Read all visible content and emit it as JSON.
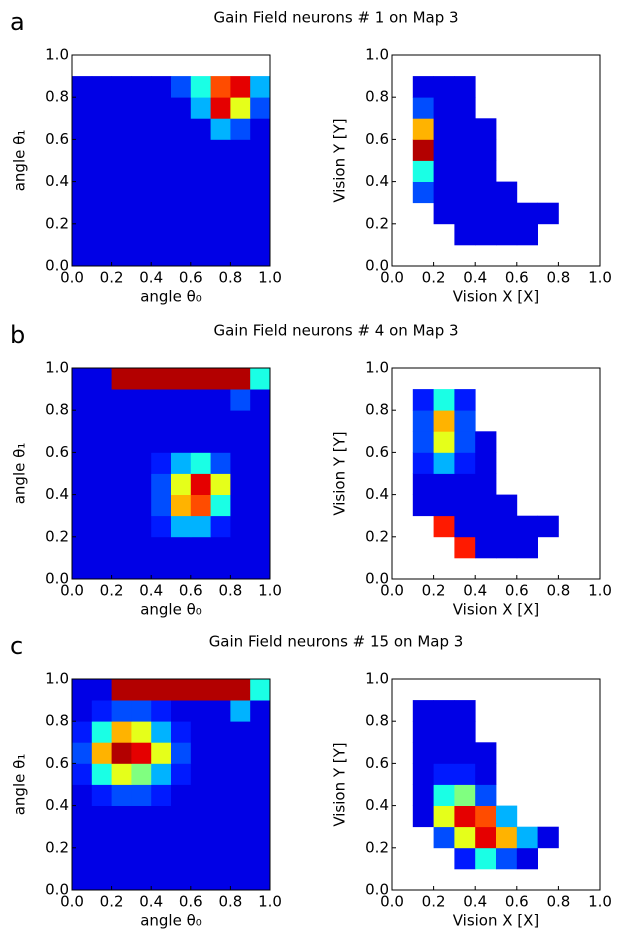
{
  "chart_data": [
    {
      "type": "heatmap",
      "panel_label": "a",
      "title": "Gain Field neurons # 1 on Map 3",
      "xlabel": "angle θ₀",
      "ylabel": "angle θ₁",
      "xlim": [
        0,
        1
      ],
      "ylim": [
        0,
        1
      ],
      "xticks": [
        {
          "value": 0,
          "label": "0.0"
        },
        {
          "value": 0.2,
          "label": "0.2"
        },
        {
          "value": 0.4,
          "label": "0.4"
        },
        {
          "value": 0.6,
          "label": "0.6"
        },
        {
          "value": 0.8,
          "label": "0.8"
        },
        {
          "value": 1,
          "label": "1.0"
        }
      ],
      "yticks": [
        {
          "value": 0,
          "label": "0.0"
        },
        {
          "value": 0.2,
          "label": "0.2"
        },
        {
          "value": 0.4,
          "label": "0.4"
        },
        {
          "value": 0.6,
          "label": "0.6"
        },
        {
          "value": 0.8,
          "label": "0.8"
        },
        {
          "value": 1,
          "label": "1.0"
        }
      ],
      "z": [
        [
          0.1,
          0.1,
          0.1,
          0.1,
          0.1,
          0.1,
          0.1,
          0.1,
          0.1,
          0.1
        ],
        [
          0.1,
          0.1,
          0.1,
          0.1,
          0.1,
          0.1,
          0.1,
          0.1,
          0.1,
          0.1
        ],
        [
          0.1,
          0.1,
          0.1,
          0.1,
          0.1,
          0.1,
          0.1,
          0.1,
          0.1,
          0.1
        ],
        [
          0.1,
          0.1,
          0.1,
          0.1,
          0.1,
          0.1,
          0.1,
          0.1,
          0.1,
          0.1
        ],
        [
          0.1,
          0.1,
          0.1,
          0.1,
          0.1,
          0.1,
          0.1,
          0.1,
          0.1,
          0.1
        ],
        [
          0.1,
          0.1,
          0.1,
          0.1,
          0.1,
          0.1,
          0.1,
          0.1,
          0.1,
          0.1
        ],
        [
          0.1,
          0.1,
          0.1,
          0.1,
          0.1,
          0.1,
          0.1,
          0.3,
          0.2,
          0.1
        ],
        [
          0.1,
          0.1,
          0.1,
          0.1,
          0.1,
          0.1,
          0.3,
          0.9,
          0.6,
          0.2
        ],
        [
          0.1,
          0.1,
          0.1,
          0.1,
          0.1,
          0.2,
          0.4,
          0.8,
          0.9,
          0.3
        ],
        [
          null,
          null,
          null,
          null,
          null,
          null,
          null,
          null,
          null,
          null
        ]
      ]
    },
    {
      "type": "heatmap",
      "xlabel": "Vision X [X]",
      "ylabel": "Vision Y [Y]",
      "xlim": [
        0,
        1
      ],
      "ylim": [
        0,
        1
      ],
      "xticks": [
        {
          "value": 0,
          "label": "0.0"
        },
        {
          "value": 0.2,
          "label": "0.2"
        },
        {
          "value": 0.4,
          "label": "0.4"
        },
        {
          "value": 0.6,
          "label": "0.6"
        },
        {
          "value": 0.8,
          "label": "0.8"
        },
        {
          "value": 1,
          "label": "1.0"
        }
      ],
      "yticks": [
        {
          "value": 0,
          "label": "0.0"
        },
        {
          "value": 0.2,
          "label": "0.2"
        },
        {
          "value": 0.4,
          "label": "0.4"
        },
        {
          "value": 0.6,
          "label": "0.6"
        },
        {
          "value": 0.8,
          "label": "0.8"
        },
        {
          "value": 1,
          "label": "1.0"
        }
      ],
      "z": [
        [
          null,
          null,
          null,
          null,
          null,
          null,
          null,
          null,
          null,
          null
        ],
        [
          null,
          null,
          null,
          0.1,
          0.1,
          0.1,
          0.1,
          null,
          null,
          null
        ],
        [
          null,
          null,
          0.1,
          0.1,
          0.1,
          0.1,
          0.1,
          0.1,
          null,
          null
        ],
        [
          null,
          0.2,
          0.1,
          0.1,
          0.1,
          0.1,
          null,
          null,
          null,
          null
        ],
        [
          null,
          0.4,
          0.1,
          0.1,
          0.1,
          null,
          null,
          null,
          null,
          null
        ],
        [
          null,
          0.95,
          0.1,
          0.1,
          0.1,
          null,
          null,
          null,
          null,
          null
        ],
        [
          null,
          0.7,
          0.1,
          0.1,
          0.1,
          null,
          null,
          null,
          null,
          null
        ],
        [
          null,
          0.2,
          0.1,
          0.1,
          null,
          null,
          null,
          null,
          null,
          null
        ],
        [
          null,
          0.1,
          0.1,
          0.1,
          null,
          null,
          null,
          null,
          null,
          null
        ],
        [
          null,
          null,
          null,
          null,
          null,
          null,
          null,
          null,
          null,
          null
        ]
      ]
    },
    {
      "type": "heatmap",
      "panel_label": "b",
      "title": "Gain Field neurons # 4 on Map 3",
      "xlabel": "angle θ₀",
      "ylabel": "angle θ₁",
      "xlim": [
        0,
        1
      ],
      "ylim": [
        0,
        1
      ],
      "xticks": [
        {
          "value": 0,
          "label": "0.0"
        },
        {
          "value": 0.2,
          "label": "0.2"
        },
        {
          "value": 0.4,
          "label": "0.4"
        },
        {
          "value": 0.6,
          "label": "0.6"
        },
        {
          "value": 0.8,
          "label": "0.8"
        },
        {
          "value": 1,
          "label": "1.0"
        }
      ],
      "yticks": [
        {
          "value": 0,
          "label": "0.0"
        },
        {
          "value": 0.2,
          "label": "0.2"
        },
        {
          "value": 0.4,
          "label": "0.4"
        },
        {
          "value": 0.6,
          "label": "0.6"
        },
        {
          "value": 0.8,
          "label": "0.8"
        },
        {
          "value": 1,
          "label": "1.0"
        }
      ],
      "z": [
        [
          0.1,
          0.1,
          0.1,
          0.1,
          0.1,
          0.1,
          0.1,
          0.1,
          0.1,
          0.1
        ],
        [
          0.1,
          0.1,
          0.1,
          0.1,
          0.1,
          0.1,
          0.1,
          0.1,
          0.1,
          0.1
        ],
        [
          0.1,
          0.1,
          0.1,
          0.1,
          0.15,
          0.3,
          0.3,
          0.15,
          0.1,
          0.1
        ],
        [
          0.1,
          0.1,
          0.1,
          0.1,
          0.2,
          0.7,
          0.8,
          0.4,
          0.1,
          0.1
        ],
        [
          0.1,
          0.1,
          0.1,
          0.1,
          0.2,
          0.6,
          0.9,
          0.6,
          0.1,
          0.1
        ],
        [
          0.1,
          0.1,
          0.1,
          0.1,
          0.15,
          0.3,
          0.4,
          0.2,
          0.1,
          0.1
        ],
        [
          0.1,
          0.1,
          0.1,
          0.1,
          0.1,
          0.1,
          0.1,
          0.1,
          0.1,
          0.1
        ],
        [
          0.1,
          0.1,
          0.1,
          0.1,
          0.1,
          0.1,
          0.1,
          0.1,
          0.1,
          0.1
        ],
        [
          0.1,
          0.1,
          0.1,
          0.1,
          0.1,
          0.1,
          0.1,
          0.1,
          0.2,
          0.1
        ],
        [
          0.1,
          0.1,
          0.95,
          0.95,
          0.95,
          0.95,
          0.95,
          0.95,
          0.95,
          0.4
        ]
      ]
    },
    {
      "type": "heatmap",
      "xlabel": "Vision X [X]",
      "ylabel": "Vision Y [Y]",
      "xlim": [
        0,
        1
      ],
      "ylim": [
        0,
        1
      ],
      "xticks": [
        {
          "value": 0,
          "label": "0.0"
        },
        {
          "value": 0.2,
          "label": "0.2"
        },
        {
          "value": 0.4,
          "label": "0.4"
        },
        {
          "value": 0.6,
          "label": "0.6"
        },
        {
          "value": 0.8,
          "label": "0.8"
        },
        {
          "value": 1,
          "label": "1.0"
        }
      ],
      "yticks": [
        {
          "value": 0,
          "label": "0.0"
        },
        {
          "value": 0.2,
          "label": "0.2"
        },
        {
          "value": 0.4,
          "label": "0.4"
        },
        {
          "value": 0.6,
          "label": "0.6"
        },
        {
          "value": 0.8,
          "label": "0.8"
        },
        {
          "value": 1,
          "label": "1.0"
        }
      ],
      "z": [
        [
          null,
          null,
          null,
          null,
          null,
          null,
          null,
          null,
          null,
          null
        ],
        [
          null,
          null,
          null,
          0.85,
          0.1,
          0.1,
          0.1,
          null,
          null,
          null
        ],
        [
          null,
          null,
          0.85,
          0.1,
          0.1,
          0.1,
          0.1,
          0.1,
          null,
          null
        ],
        [
          null,
          0.1,
          0.1,
          0.1,
          0.1,
          0.1,
          null,
          null,
          null,
          null
        ],
        [
          null,
          0.1,
          0.1,
          0.1,
          0.1,
          null,
          null,
          null,
          null,
          null
        ],
        [
          null,
          0.15,
          0.3,
          0.15,
          0.1,
          null,
          null,
          null,
          null,
          null
        ],
        [
          null,
          0.2,
          0.6,
          0.2,
          0.1,
          null,
          null,
          null,
          null,
          null
        ],
        [
          null,
          0.2,
          0.7,
          0.2,
          null,
          null,
          null,
          null,
          null,
          null
        ],
        [
          null,
          0.15,
          0.4,
          0.15,
          null,
          null,
          null,
          null,
          null,
          null
        ],
        [
          null,
          null,
          null,
          null,
          null,
          null,
          null,
          null,
          null,
          null
        ]
      ]
    },
    {
      "type": "heatmap",
      "panel_label": "c",
      "title": "Gain Field neurons # 15 on Map 3",
      "xlabel": "angle θ₀",
      "ylabel": "angle θ₁",
      "xlim": [
        0,
        1
      ],
      "ylim": [
        0,
        1
      ],
      "xticks": [
        {
          "value": 0,
          "label": "0.0"
        },
        {
          "value": 0.2,
          "label": "0.2"
        },
        {
          "value": 0.4,
          "label": "0.4"
        },
        {
          "value": 0.6,
          "label": "0.6"
        },
        {
          "value": 0.8,
          "label": "0.8"
        },
        {
          "value": 1,
          "label": "1.0"
        }
      ],
      "yticks": [
        {
          "value": 0,
          "label": "0.0"
        },
        {
          "value": 0.2,
          "label": "0.2"
        },
        {
          "value": 0.4,
          "label": "0.4"
        },
        {
          "value": 0.6,
          "label": "0.6"
        },
        {
          "value": 0.8,
          "label": "0.8"
        },
        {
          "value": 1,
          "label": "1.0"
        }
      ],
      "z": [
        [
          0.1,
          0.1,
          0.1,
          0.1,
          0.1,
          0.1,
          0.1,
          0.1,
          0.1,
          0.1
        ],
        [
          0.1,
          0.1,
          0.1,
          0.1,
          0.1,
          0.1,
          0.1,
          0.1,
          0.1,
          0.1
        ],
        [
          0.1,
          0.1,
          0.1,
          0.1,
          0.1,
          0.1,
          0.1,
          0.1,
          0.1,
          0.1
        ],
        [
          0.1,
          0.1,
          0.1,
          0.1,
          0.1,
          0.1,
          0.1,
          0.1,
          0.1,
          0.1
        ],
        [
          0.1,
          0.15,
          0.2,
          0.2,
          0.15,
          0.1,
          0.1,
          0.1,
          0.1,
          0.1
        ],
        [
          0.15,
          0.4,
          0.6,
          0.5,
          0.3,
          0.15,
          0.1,
          0.1,
          0.1,
          0.1
        ],
        [
          0.2,
          0.7,
          0.95,
          0.9,
          0.6,
          0.2,
          0.1,
          0.1,
          0.1,
          0.1
        ],
        [
          0.15,
          0.4,
          0.7,
          0.6,
          0.3,
          0.15,
          0.1,
          0.1,
          0.1,
          0.1
        ],
        [
          0.1,
          0.15,
          0.2,
          0.2,
          0.15,
          0.1,
          0.1,
          0.1,
          0.3,
          0.1
        ],
        [
          0.1,
          0.1,
          0.95,
          0.95,
          0.95,
          0.95,
          0.95,
          0.95,
          0.95,
          0.4
        ]
      ]
    },
    {
      "type": "heatmap",
      "xlabel": "Vision X [X]",
      "ylabel": "Vision Y [Y]",
      "xlim": [
        0,
        1
      ],
      "ylim": [
        0,
        1
      ],
      "xticks": [
        {
          "value": 0,
          "label": "0.0"
        },
        {
          "value": 0.2,
          "label": "0.2"
        },
        {
          "value": 0.4,
          "label": "0.4"
        },
        {
          "value": 0.6,
          "label": "0.6"
        },
        {
          "value": 0.8,
          "label": "0.8"
        },
        {
          "value": 1,
          "label": "1.0"
        }
      ],
      "yticks": [
        {
          "value": 0,
          "label": "0.0"
        },
        {
          "value": 0.2,
          "label": "0.2"
        },
        {
          "value": 0.4,
          "label": "0.4"
        },
        {
          "value": 0.6,
          "label": "0.6"
        },
        {
          "value": 0.8,
          "label": "0.8"
        },
        {
          "value": 1,
          "label": "1.0"
        }
      ],
      "z": [
        [
          null,
          null,
          null,
          null,
          null,
          null,
          null,
          null,
          null,
          null
        ],
        [
          null,
          null,
          null,
          0.15,
          0.4,
          0.2,
          0.1,
          null,
          null,
          null
        ],
        [
          null,
          null,
          0.2,
          0.6,
          0.9,
          0.7,
          0.3,
          0.1,
          null,
          null
        ],
        [
          null,
          0.1,
          0.6,
          0.9,
          0.8,
          0.3,
          null,
          null,
          null,
          null
        ],
        [
          null,
          0.1,
          0.4,
          0.5,
          0.2,
          null,
          null,
          null,
          null,
          null
        ],
        [
          null,
          0.1,
          0.15,
          0.15,
          0.1,
          null,
          null,
          null,
          null,
          null
        ],
        [
          null,
          0.1,
          0.1,
          0.1,
          0.1,
          null,
          null,
          null,
          null,
          null
        ],
        [
          null,
          0.1,
          0.1,
          0.1,
          null,
          null,
          null,
          null,
          null,
          null
        ],
        [
          null,
          0.1,
          0.1,
          0.1,
          null,
          null,
          null,
          null,
          null,
          null
        ],
        [
          null,
          null,
          null,
          null,
          null,
          null,
          null,
          null,
          null,
          null
        ]
      ]
    }
  ]
}
